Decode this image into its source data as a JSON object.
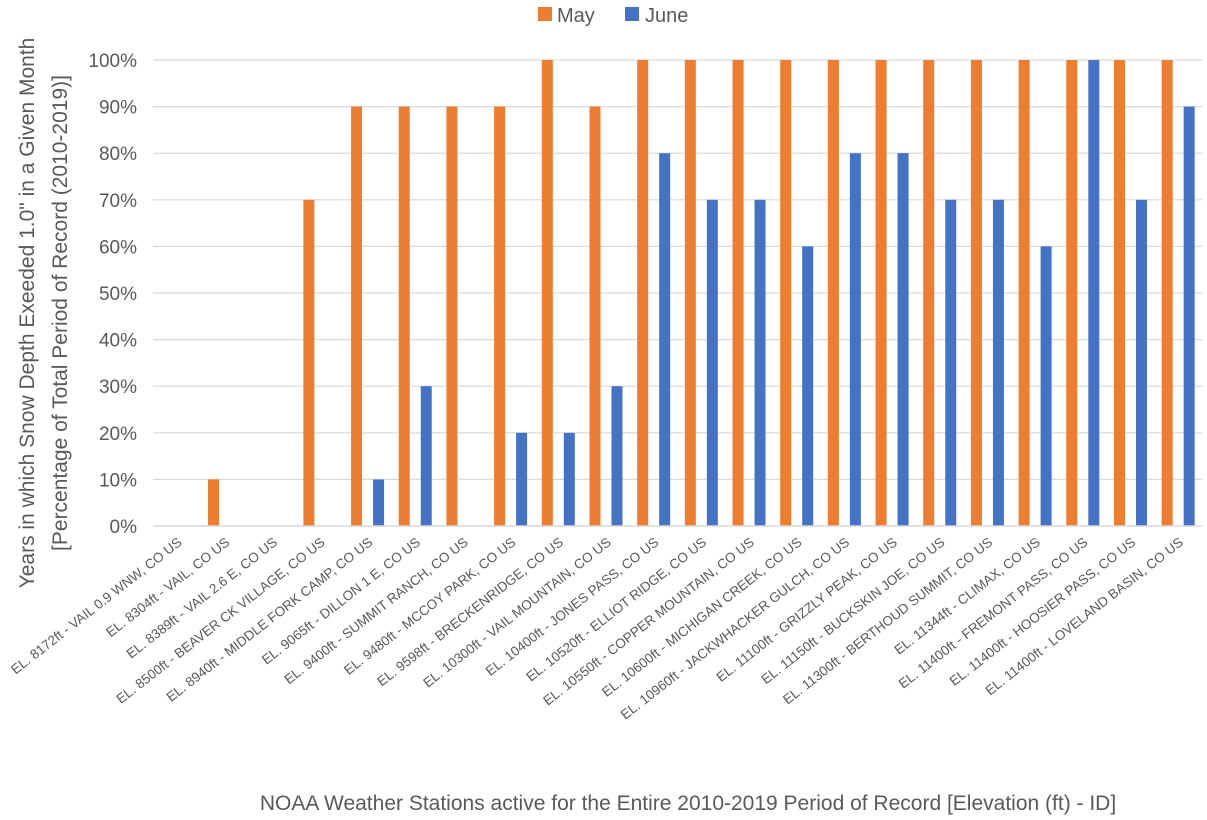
{
  "chart_data": {
    "type": "bar",
    "title": "",
    "xlabel": "NOAA Weather Stations active for the Entire 2010-2019 Period of Record [Elevation (ft) - ID]",
    "ylabel_line1": "Years in which  Snow Depth Exeeded 1.0\" in a Given Month",
    "ylabel_line2": "[Percentage of Total Period of Record (2010-2019)]",
    "ylim": [
      0,
      100
    ],
    "y_ticks": [
      "0%",
      "10%",
      "20%",
      "30%",
      "40%",
      "50%",
      "60%",
      "70%",
      "80%",
      "90%",
      "100%"
    ],
    "grid": true,
    "legend_position": "top",
    "categories": [
      "EL. 8172ft - VAIL 0.9 WNW, CO US",
      "EL. 8304ft - VAIL, CO US",
      "EL. 8389ft - VAIL 2.6 E, CO US",
      "EL. 8500ft - BEAVER CK VILLAGE, CO US",
      "EL. 8940ft - MIDDLE FORK CAMP, CO US",
      "EL. 9065ft - DILLON 1 E, CO US",
      "EL. 9400ft - SUMMIT RANCH, CO US",
      "EL. 9480ft - MCCOY PARK, CO US",
      "EL. 9598ft - BRECKENRIDGE, CO US",
      "EL. 10300ft - VAIL MOUNTAIN, CO US",
      "EL. 10400ft - JONES PASS, CO US",
      "EL. 10520ft - ELLIOT RIDGE, CO US",
      "EL. 10550ft - COPPER MOUNTAIN, CO US",
      "EL. 10600ft - MICHIGAN CREEK, CO US",
      "EL. 10960ft - JACKWHACKER GULCH, CO US",
      "EL. 11100ft - GRIZZLY PEAK, CO US",
      "EL. 11150ft - BUCKSKIN JOE, CO US",
      "EL. 11300ft - BERTHOUD SUMMIT, CO US",
      "EL. 11344ft - CLIMAX, CO US",
      "EL. 11400ft - FREMONT PASS, CO US",
      "EL. 11400ft - HOOSIER PASS, CO US",
      "EL. 11400ft - LOVELAND BASIN, CO US"
    ],
    "series": [
      {
        "name": "May",
        "color": "#ED7D31",
        "values": [
          0,
          10,
          0,
          70,
          90,
          90,
          90,
          90,
          100,
          90,
          100,
          100,
          100,
          100,
          100,
          100,
          100,
          100,
          100,
          100,
          100,
          100
        ]
      },
      {
        "name": "June",
        "color": "#4472C4",
        "values": [
          0,
          0,
          0,
          0,
          10,
          30,
          0,
          20,
          20,
          30,
          80,
          70,
          70,
          60,
          80,
          80,
          70,
          70,
          60,
          100,
          70,
          90
        ]
      }
    ]
  }
}
